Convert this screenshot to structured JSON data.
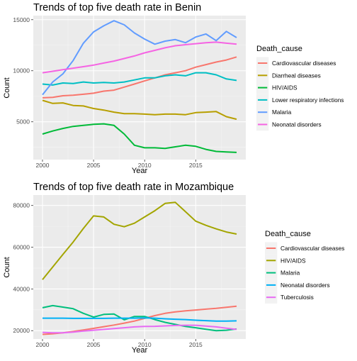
{
  "chart_data": [
    {
      "type": "line",
      "title": "Trends of top five death rate in Benin",
      "xlabel": "Year",
      "ylabel": "Count",
      "xlim": [
        1999.1,
        2019.9
      ],
      "ylim": [
        1300,
        15400
      ],
      "x_ticks": [
        2000,
        2005,
        2010,
        2015
      ],
      "y_ticks": [
        5000,
        10000,
        15000
      ],
      "y_tick_labels": [
        "5000",
        "10000",
        "15000"
      ],
      "grid": true,
      "legend_title": "Death_cause",
      "legend_position": "right",
      "x": [
        2000,
        2001,
        2002,
        2003,
        2004,
        2005,
        2006,
        2007,
        2008,
        2009,
        2010,
        2011,
        2012,
        2013,
        2014,
        2015,
        2016,
        2017,
        2018,
        2019
      ],
      "series": [
        {
          "name": "Cardiovascular diseases",
          "color": "#F8766D",
          "values": [
            7350,
            7400,
            7550,
            7600,
            7700,
            7800,
            8000,
            8100,
            8400,
            8700,
            9000,
            9300,
            9600,
            9800,
            10000,
            10350,
            10600,
            10850,
            11050,
            11350
          ]
        },
        {
          "name": "Diarrheal diseases",
          "color": "#B79F00",
          "values": [
            7100,
            6800,
            6850,
            6600,
            6550,
            6300,
            6150,
            5950,
            5800,
            5800,
            5750,
            5700,
            5750,
            5750,
            5700,
            5900,
            5950,
            6000,
            5500,
            5250
          ]
        },
        {
          "name": "HIV/AIDS",
          "color": "#00BA38",
          "values": [
            3800,
            4100,
            4350,
            4550,
            4650,
            4750,
            4800,
            4650,
            3800,
            2700,
            2450,
            2450,
            2400,
            2550,
            2700,
            2600,
            2300,
            2100,
            2050,
            2000
          ]
        },
        {
          "name": "Lower respiratory infections",
          "color": "#00BFC4",
          "values": [
            8700,
            8600,
            8800,
            8750,
            8900,
            8800,
            8850,
            8800,
            8900,
            9100,
            9300,
            9300,
            9500,
            9600,
            9500,
            9800,
            9800,
            9600,
            9200,
            9050
          ]
        },
        {
          "name": "Malaria",
          "color": "#619CFF",
          "values": [
            7650,
            8900,
            9700,
            11000,
            12700,
            13800,
            14400,
            14900,
            14500,
            13700,
            13100,
            12600,
            12900,
            13050,
            12750,
            13300,
            13600,
            12950,
            13850,
            13250
          ]
        },
        {
          "name": "Neonatal disorders",
          "color": "#F564E3",
          "values": [
            9800,
            9950,
            10100,
            10250,
            10400,
            10550,
            10750,
            10950,
            11200,
            11450,
            11750,
            12000,
            12250,
            12450,
            12550,
            12650,
            12750,
            12800,
            12700,
            12600
          ]
        }
      ]
    },
    {
      "type": "line",
      "title": "Trends of top five death rate in Mozambique",
      "xlabel": "Year",
      "ylabel": "Count",
      "xlim": [
        1999.1,
        2019.9
      ],
      "ylim": [
        16000,
        85000
      ],
      "x_ticks": [
        2000,
        2005,
        2010,
        2015
      ],
      "y_ticks": [
        20000,
        40000,
        60000,
        80000
      ],
      "y_tick_labels": [
        "20000",
        "40000",
        "60000",
        "80000"
      ],
      "grid": true,
      "legend_title": "Death_cause",
      "legend_position": "right",
      "x": [
        2000,
        2001,
        2002,
        2003,
        2004,
        2005,
        2006,
        2007,
        2008,
        2009,
        2010,
        2011,
        2012,
        2013,
        2014,
        2015,
        2016,
        2017,
        2018,
        2019
      ],
      "series": [
        {
          "name": "Cardiovascular diseases",
          "color": "#F8766D",
          "values": [
            18200,
            18500,
            19000,
            19600,
            20300,
            21100,
            21900,
            22700,
            23600,
            24600,
            25900,
            27200,
            28300,
            29000,
            29500,
            29900,
            30300,
            30700,
            31200,
            31700
          ]
        },
        {
          "name": "HIV/AIDS",
          "color": "#A3A500",
          "values": [
            44500,
            50500,
            56500,
            62500,
            69000,
            75000,
            74500,
            71000,
            69800,
            71500,
            74500,
            77500,
            81000,
            81500,
            77000,
            72500,
            70500,
            68800,
            67300,
            66300
          ]
        },
        {
          "name": "Malaria",
          "color": "#00BF7D",
          "values": [
            31000,
            32000,
            31300,
            30500,
            28300,
            26500,
            27800,
            28000,
            25200,
            26800,
            26800,
            25300,
            24000,
            23000,
            22000,
            21400,
            20700,
            20000,
            20200,
            20800
          ]
        },
        {
          "name": "Neonatal disorders",
          "color": "#00B0F6",
          "values": [
            26000,
            26000,
            26000,
            25900,
            25900,
            25900,
            25900,
            26000,
            26000,
            26000,
            26100,
            26000,
            25700,
            25500,
            25300,
            25000,
            24800,
            24600,
            24600,
            24700
          ]
        },
        {
          "name": "Tuberculosis",
          "color": "#E76BF3",
          "values": [
            19200,
            19000,
            19000,
            19300,
            19800,
            20200,
            20600,
            21000,
            21400,
            21800,
            22000,
            22100,
            22300,
            22500,
            22600,
            22600,
            22200,
            21800,
            21200,
            20600
          ]
        }
      ]
    }
  ]
}
